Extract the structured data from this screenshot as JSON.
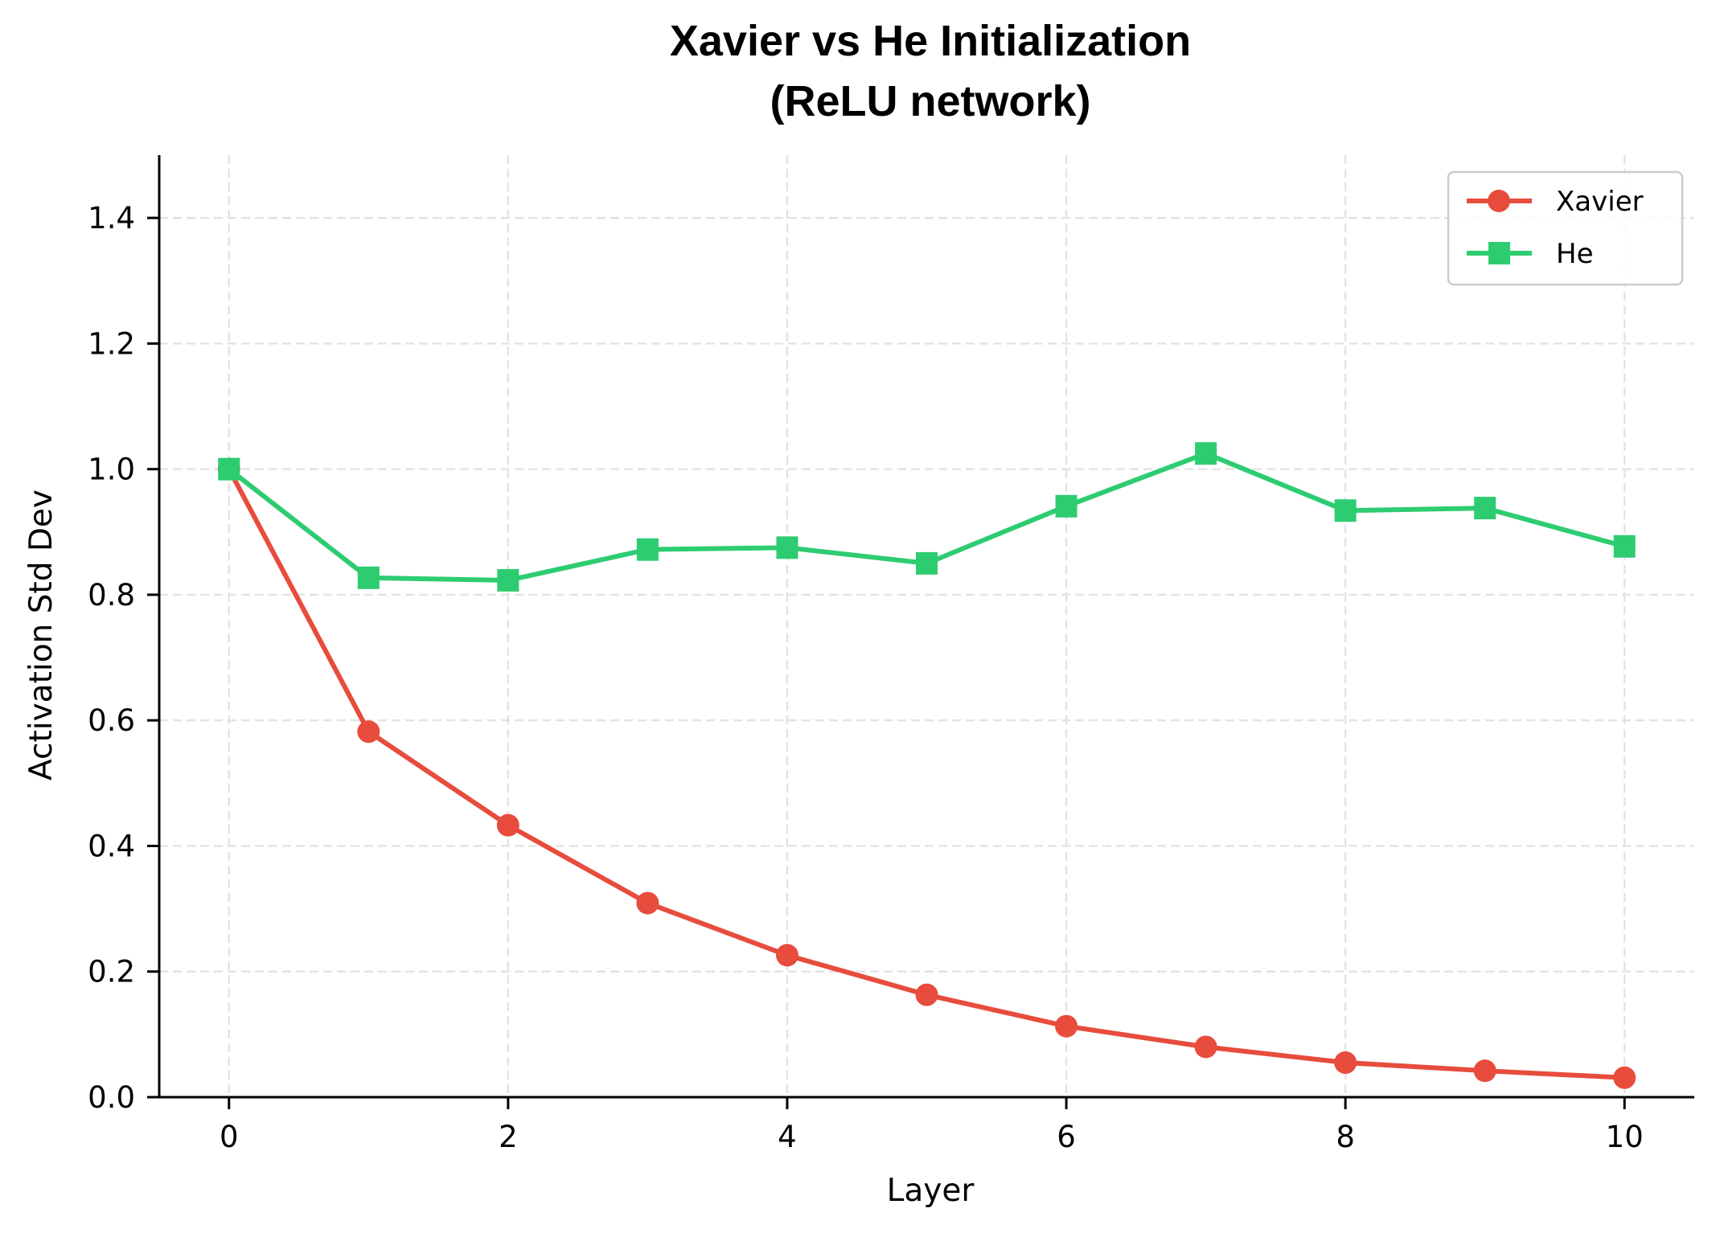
{
  "chart_data": {
    "type": "line",
    "title": "Xavier vs He Initialization\n(ReLU network)",
    "title_lines": [
      "Xavier vs He Initialization",
      "(ReLU network)"
    ],
    "xlabel": "Layer",
    "ylabel": "Activation Std Dev",
    "x": [
      0,
      1,
      2,
      3,
      4,
      5,
      6,
      7,
      8,
      9,
      10
    ],
    "xlim": [
      -0.5,
      10.5
    ],
    "ylim": [
      0,
      1.5
    ],
    "xticks": [
      0,
      2,
      4,
      6,
      8,
      10
    ],
    "xtick_labels": [
      "0",
      "2",
      "4",
      "6",
      "8",
      "10"
    ],
    "yticks": [
      0.0,
      0.2,
      0.4,
      0.6,
      0.8,
      1.0,
      1.2,
      1.4
    ],
    "ytick_labels": [
      "0.0",
      "0.2",
      "0.4",
      "0.6",
      "0.8",
      "1.0",
      "1.2",
      "1.4"
    ],
    "grid": true,
    "grid_style": "dashed",
    "legend_position": "upper right",
    "series": [
      {
        "name": "Xavier",
        "color": "#e74c3c",
        "marker": "circle",
        "values": [
          1.0,
          0.582,
          0.433,
          0.309,
          0.226,
          0.163,
          0.113,
          0.08,
          0.055,
          0.042,
          0.031
        ]
      },
      {
        "name": "He",
        "color": "#2ecc71",
        "marker": "square",
        "values": [
          1.0,
          0.827,
          0.823,
          0.872,
          0.875,
          0.85,
          0.941,
          1.025,
          0.934,
          0.938,
          0.877
        ]
      }
    ]
  },
  "legend": {
    "items": [
      {
        "label": "Xavier",
        "color": "#e74c3c",
        "marker": "circle"
      },
      {
        "label": "He",
        "color": "#2ecc71",
        "marker": "square"
      }
    ]
  }
}
